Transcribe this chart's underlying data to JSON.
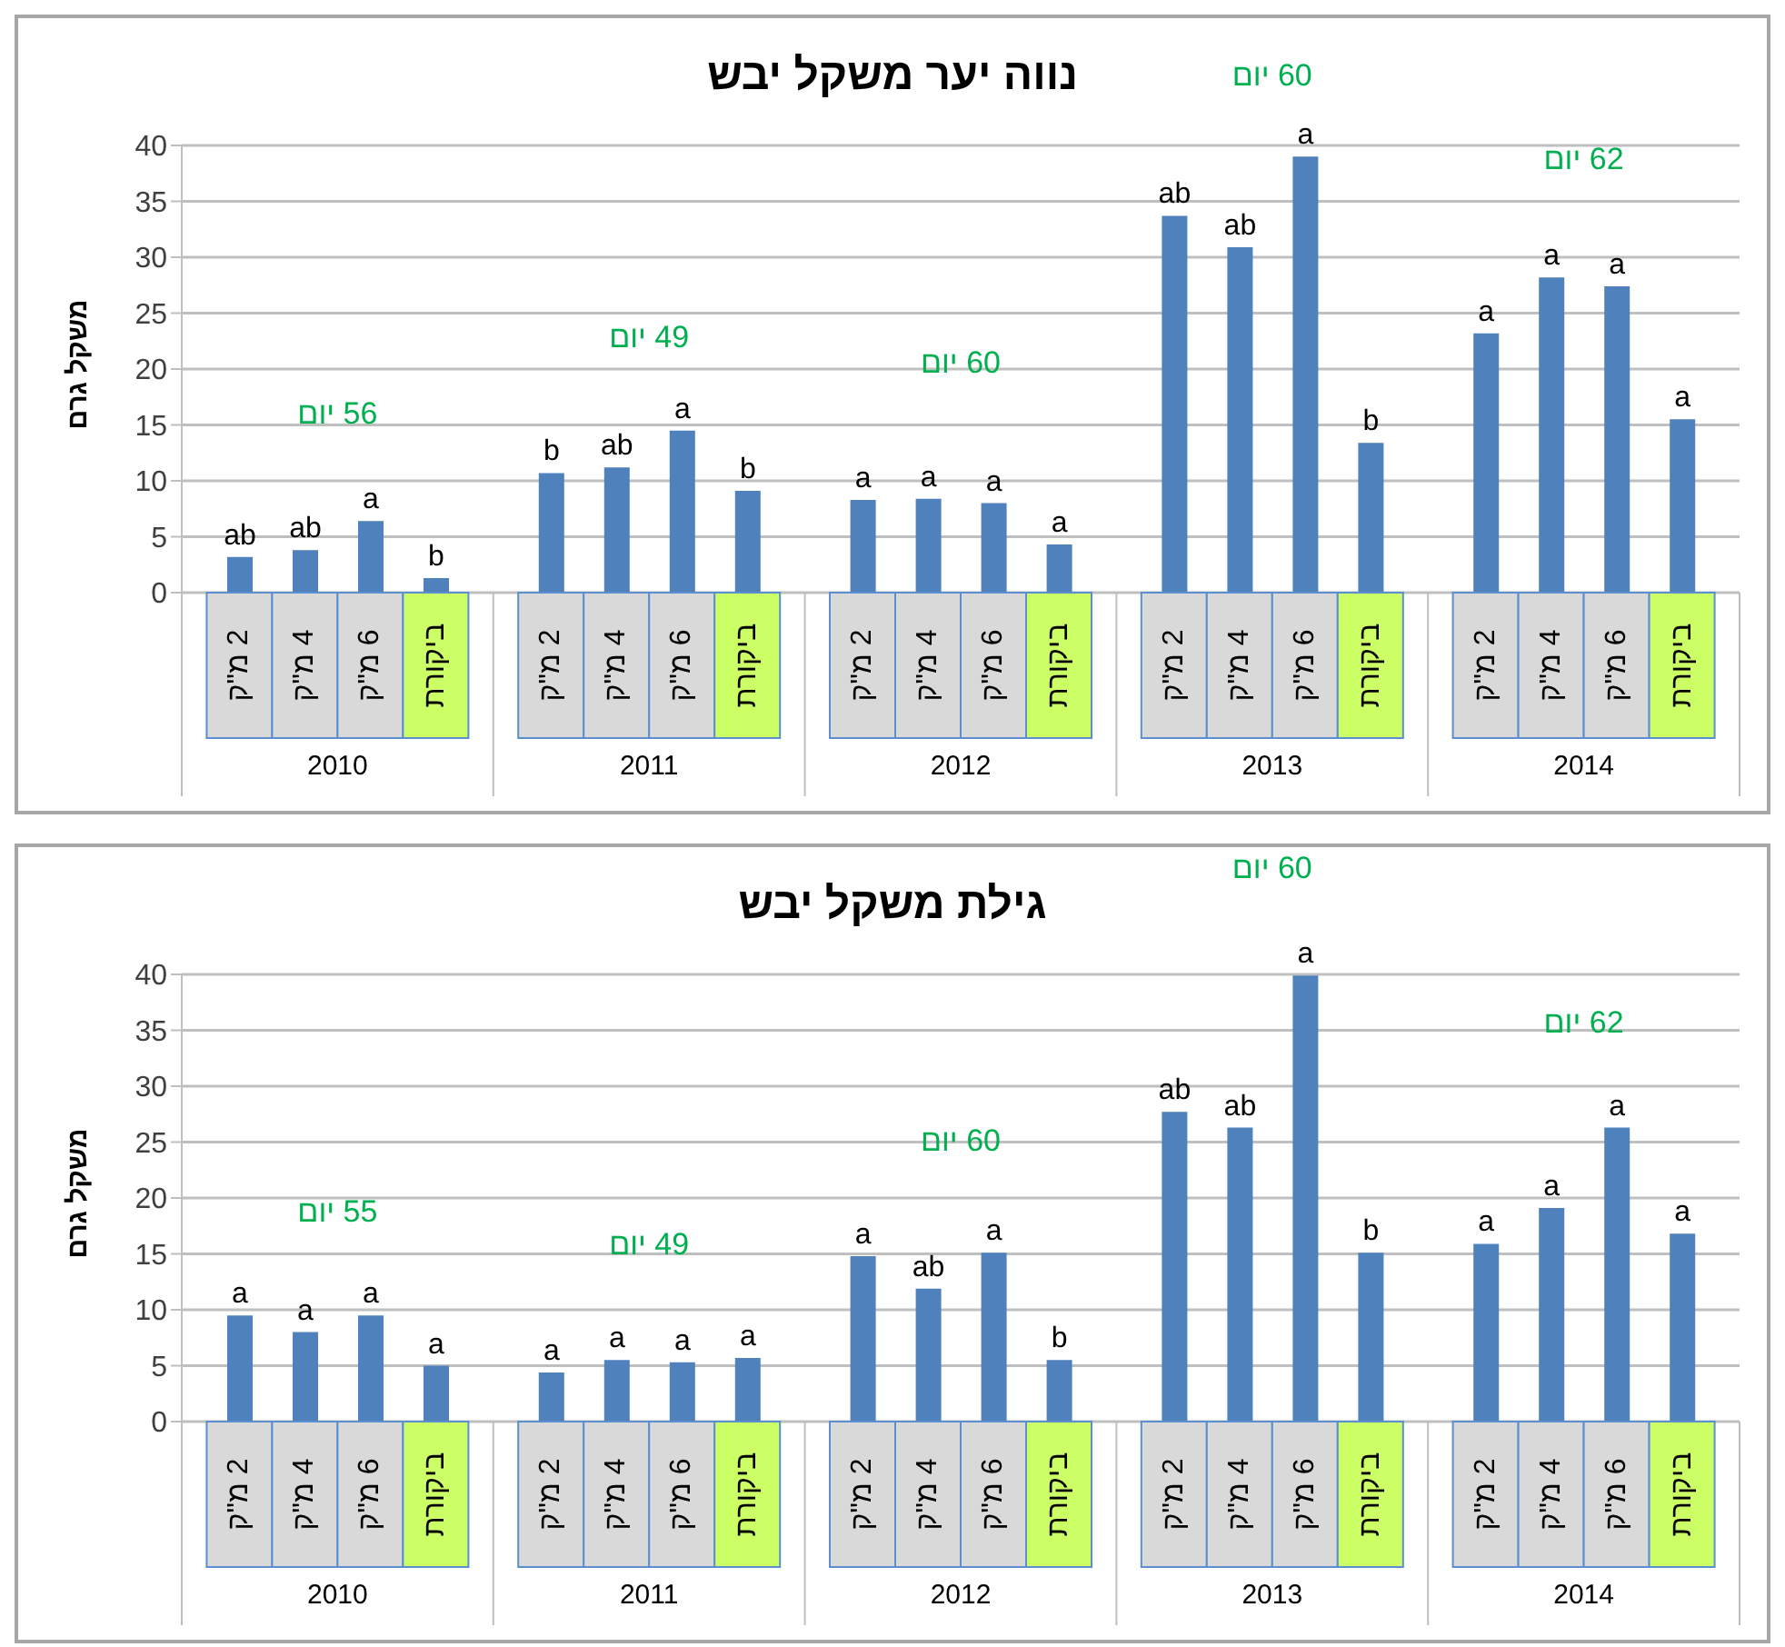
{
  "chart_data": [
    {
      "type": "bar",
      "title": "נווה יער משקל יבש",
      "ylabel": "משקל גרם",
      "categories": [
        "2010",
        "2011",
        "2012",
        "2013",
        "2014"
      ],
      "series": [
        {
          "name": "2 מ\"ק",
          "color": "#4f81bd",
          "values": [
            3.2,
            10.7,
            8.3,
            33.7,
            23.2
          ],
          "value_labels": [
            "ab",
            "b",
            "a",
            "ab",
            "a"
          ]
        },
        {
          "name": "4 מ\"ק",
          "color": "#4f81bd",
          "values": [
            3.8,
            11.2,
            8.4,
            30.9,
            28.2
          ],
          "value_labels": [
            "ab",
            "ab",
            "a",
            "ab",
            "a"
          ]
        },
        {
          "name": "6 מ\"ק",
          "color": "#4f81bd",
          "values": [
            6.4,
            14.5,
            8.0,
            39.0,
            27.4
          ],
          "value_labels": [
            "a",
            "a",
            "a",
            "a",
            "a"
          ]
        },
        {
          "name": "ביקורת",
          "color": "#4f81bd",
          "values": [
            1.3,
            9.1,
            4.3,
            13.4,
            15.5
          ],
          "value_labels": [
            "b",
            "b",
            "a",
            "b",
            "a"
          ]
        }
      ],
      "ylim": [
        0,
        40
      ],
      "yticks": [
        0,
        5,
        10,
        15,
        20,
        25,
        30,
        35,
        40
      ],
      "grid": "y",
      "annotations": [
        "56 יום",
        "49 יום",
        "60 יום",
        "60 יום",
        "62 יום"
      ]
    },
    {
      "type": "bar",
      "title": "גילת משקל יבש",
      "ylabel": "משקל גרם",
      "categories": [
        "2010",
        "2011",
        "2012",
        "2013",
        "2014"
      ],
      "series": [
        {
          "name": "2 מ\"ק",
          "color": "#4f81bd",
          "values": [
            9.5,
            4.4,
            14.8,
            27.7,
            15.9
          ],
          "value_labels": [
            "a",
            "a",
            "a",
            "ab",
            "a"
          ]
        },
        {
          "name": "4 מ\"ק",
          "color": "#4f81bd",
          "values": [
            8.0,
            5.5,
            11.9,
            26.3,
            19.1
          ],
          "value_labels": [
            "a",
            "a",
            "ab",
            "ab",
            "a"
          ]
        },
        {
          "name": "6 מ\"ק",
          "color": "#4f81bd",
          "values": [
            9.5,
            5.3,
            15.1,
            39.9,
            26.3
          ],
          "value_labels": [
            "a",
            "a",
            "a",
            "a",
            "a"
          ]
        },
        {
          "name": "ביקורת",
          "color": "#4f81bd",
          "values": [
            5.0,
            5.7,
            5.5,
            15.1,
            16.8
          ],
          "value_labels": [
            "a",
            "a",
            "b",
            "b",
            "a"
          ]
        }
      ],
      "ylim": [
        0,
        40
      ],
      "yticks": [
        0,
        5,
        10,
        15,
        20,
        25,
        30,
        35,
        40
      ],
      "grid": "y",
      "annotations": [
        "55 יום",
        "49 יום",
        "60 יום",
        "60 יום",
        "62 יום"
      ]
    }
  ]
}
